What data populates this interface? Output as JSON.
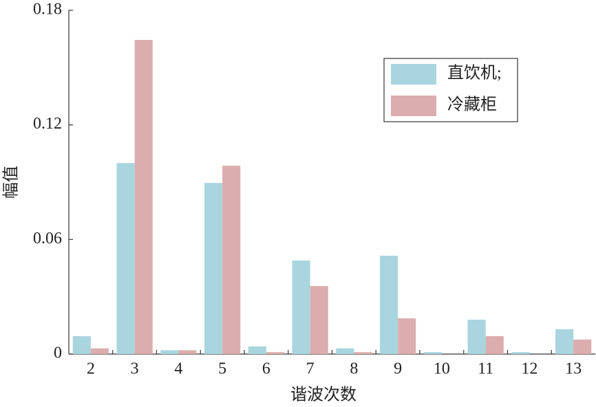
{
  "chart_data": {
    "type": "bar",
    "xlabel": "谐波次数",
    "ylabel": "幅值",
    "categories": [
      "2",
      "3",
      "4",
      "5",
      "6",
      "7",
      "8",
      "9",
      "10",
      "11",
      "12",
      "13"
    ],
    "series": [
      {
        "name": "直饮机;",
        "color": "#a9d5df",
        "values": [
          0.0094,
          0.1,
          0.002,
          0.0896,
          0.004,
          0.049,
          0.003,
          0.0515,
          0.001,
          0.018,
          0.001,
          0.013
        ]
      },
      {
        "name": "冷藏柜",
        "color": "#dcadad",
        "values": [
          0.003,
          0.1645,
          0.002,
          0.0986,
          0.001,
          0.0356,
          0.001,
          0.0187,
          0,
          0.0094,
          0,
          0.0076
        ]
      }
    ],
    "ylim": [
      0,
      0.18
    ],
    "yticks": [
      0,
      0.06,
      0.12,
      0.18
    ],
    "legend": "upper-right"
  }
}
